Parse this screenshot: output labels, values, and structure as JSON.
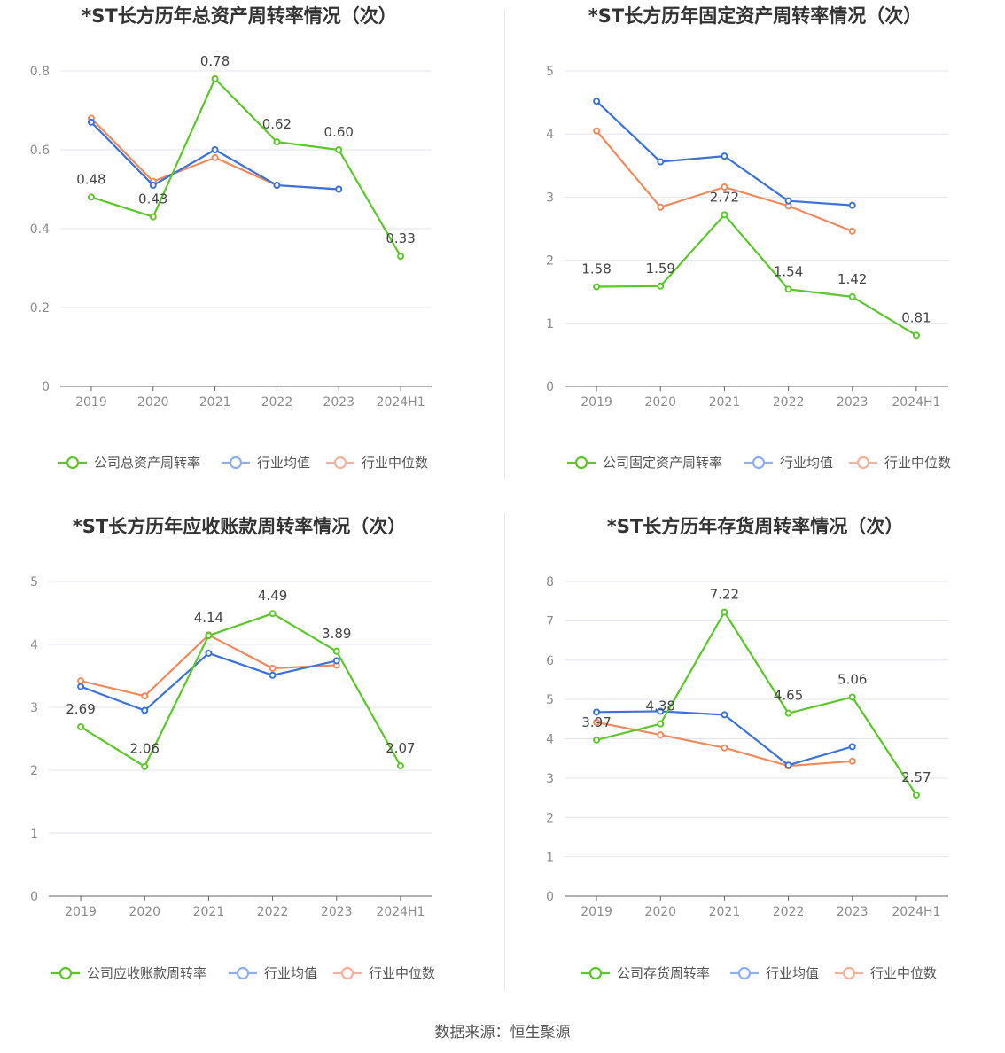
{
  "footer": {
    "source": "数据来源：恒生聚源"
  },
  "colors": {
    "company": "#5cc72a",
    "avg": "#3b72d9",
    "median": "#f08a5d",
    "avg_legend": "#8fb0ee",
    "median_legend": "#f5b29a",
    "grid": "#e3e6ef",
    "axis": "#666666",
    "tick": "#8c8c8c"
  },
  "chart_data": [
    {
      "type": "line",
      "title": "*ST长方历年总资产周转率情况（次）",
      "categories": [
        "2019",
        "2020",
        "2021",
        "2022",
        "2023",
        "2024H1"
      ],
      "ylim": [
        0,
        0.8
      ],
      "yticks": [
        0,
        0.2,
        0.4,
        0.6,
        0.8
      ],
      "ytick_labels": [
        "0",
        "0.2",
        "0.4",
        "0.6",
        "0.8"
      ],
      "series": [
        {
          "name": "公司总资产周转率",
          "key": "company",
          "values": [
            0.48,
            0.43,
            0.78,
            0.62,
            0.6,
            0.33
          ],
          "labels": [
            "0.48",
            "0.43",
            "0.78",
            "0.62",
            "0.60",
            "0.33"
          ]
        },
        {
          "name": "行业均值",
          "key": "avg",
          "values": [
            0.67,
            0.51,
            0.6,
            0.51,
            0.5,
            null
          ]
        },
        {
          "name": "行业中位数",
          "key": "median",
          "values": [
            0.68,
            0.52,
            0.58,
            0.51,
            0.5,
            null
          ]
        }
      ]
    },
    {
      "type": "line",
      "title": "*ST长方历年固定资产周转率情况（次）",
      "categories": [
        "2019",
        "2020",
        "2021",
        "2022",
        "2023",
        "2024H1"
      ],
      "ylim": [
        0,
        5
      ],
      "yticks": [
        0,
        1,
        2,
        3,
        4,
        5
      ],
      "ytick_labels": [
        "0",
        "1",
        "2",
        "3",
        "4",
        "5"
      ],
      "series": [
        {
          "name": "公司固定资产周转率",
          "key": "company",
          "values": [
            1.58,
            1.59,
            2.72,
            1.54,
            1.42,
            0.81
          ],
          "labels": [
            "1.58",
            "1.59",
            "2.72",
            "1.54",
            "1.42",
            "0.81"
          ]
        },
        {
          "name": "行业均值",
          "key": "avg",
          "values": [
            4.52,
            3.56,
            3.65,
            2.94,
            2.87,
            null
          ]
        },
        {
          "name": "行业中位数",
          "key": "median",
          "values": [
            4.05,
            2.84,
            3.16,
            2.86,
            2.46,
            null
          ]
        }
      ]
    },
    {
      "type": "line",
      "title": "*ST长方历年应收账款周转率情况（次）",
      "categories": [
        "2019",
        "2020",
        "2021",
        "2022",
        "2023",
        "2024H1"
      ],
      "ylim": [
        0,
        5
      ],
      "yticks": [
        0,
        1,
        2,
        3,
        4,
        5
      ],
      "ytick_labels": [
        "0",
        "1",
        "2",
        "3",
        "4",
        "5"
      ],
      "series": [
        {
          "name": "公司应收账款周转率",
          "key": "company",
          "values": [
            2.69,
            2.06,
            4.14,
            4.49,
            3.89,
            2.07
          ],
          "labels": [
            "2.69",
            "2.06",
            "4.14",
            "4.49",
            "3.89",
            "2.07"
          ]
        },
        {
          "name": "行业均值",
          "key": "avg",
          "values": [
            3.33,
            2.95,
            3.86,
            3.51,
            3.74,
            null
          ]
        },
        {
          "name": "行业中位数",
          "key": "median",
          "values": [
            3.42,
            3.18,
            4.15,
            3.62,
            3.67,
            null
          ]
        }
      ]
    },
    {
      "type": "line",
      "title": "*ST长方历年存货周转率情况（次）",
      "categories": [
        "2019",
        "2020",
        "2021",
        "2022",
        "2023",
        "2024H1"
      ],
      "ylim": [
        0,
        8
      ],
      "yticks": [
        0,
        1,
        2,
        3,
        4,
        5,
        6,
        7,
        8
      ],
      "ytick_labels": [
        "0",
        "1",
        "2",
        "3",
        "4",
        "5",
        "6",
        "7",
        "8"
      ],
      "series": [
        {
          "name": "公司存货周转率",
          "key": "company",
          "values": [
            3.97,
            4.38,
            7.22,
            4.65,
            5.06,
            2.57
          ],
          "labels": [
            "3.97",
            "4.38",
            "7.22",
            "4.65",
            "5.06",
            "2.57"
          ]
        },
        {
          "name": "行业均值",
          "key": "avg",
          "values": [
            4.68,
            4.7,
            4.61,
            3.33,
            3.8,
            null
          ]
        },
        {
          "name": "行业中位数",
          "key": "median",
          "values": [
            4.42,
            4.1,
            3.77,
            3.31,
            3.43,
            null
          ]
        }
      ]
    }
  ]
}
